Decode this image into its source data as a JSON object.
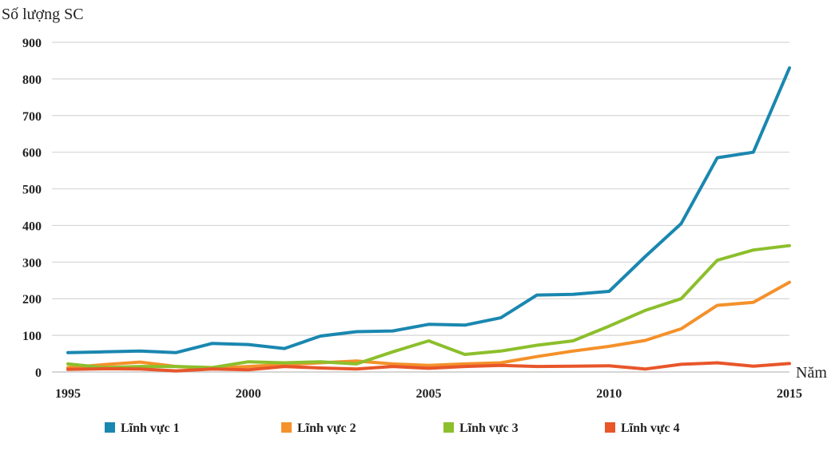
{
  "chart_data": {
    "type": "line",
    "ylabel": "Số lượng SC",
    "xlabel": "Năm",
    "xlim": [
      1995,
      2015
    ],
    "ylim": [
      0,
      900
    ],
    "yticks": [
      0,
      100,
      200,
      300,
      400,
      500,
      600,
      700,
      800,
      900
    ],
    "xticks": [
      1995,
      2000,
      2005,
      2010,
      2015
    ],
    "grid": true,
    "legend_position": "bottom",
    "x": [
      1995,
      1996,
      1997,
      1998,
      1999,
      2000,
      2001,
      2002,
      2003,
      2004,
      2005,
      2006,
      2007,
      2008,
      2009,
      2010,
      2011,
      2012,
      2013,
      2014,
      2015
    ],
    "series": [
      {
        "name": "Lĩnh vực 1",
        "color": "#1a87b0",
        "values": [
          53,
          55,
          57,
          53,
          78,
          75,
          64,
          98,
          110,
          112,
          130,
          128,
          148,
          210,
          212,
          220,
          315,
          405,
          585,
          600,
          830
        ]
      },
      {
        "name": "Lĩnh vực 2",
        "color": "#f4912a",
        "values": [
          12,
          20,
          27,
          15,
          10,
          15,
          20,
          25,
          30,
          22,
          18,
          22,
          25,
          42,
          57,
          70,
          86,
          118,
          182,
          190,
          245
        ]
      },
      {
        "name": "Lĩnh vực 3",
        "color": "#8cbf2c",
        "values": [
          22,
          12,
          15,
          15,
          12,
          28,
          25,
          28,
          22,
          55,
          85,
          48,
          57,
          73,
          85,
          125,
          168,
          200,
          305,
          333,
          345
        ]
      },
      {
        "name": "Lĩnh vực 4",
        "color": "#e8562a",
        "values": [
          7,
          9,
          8,
          3,
          8,
          6,
          15,
          11,
          8,
          15,
          10,
          15,
          18,
          15,
          16,
          17,
          8,
          21,
          25,
          16,
          23
        ]
      }
    ]
  }
}
